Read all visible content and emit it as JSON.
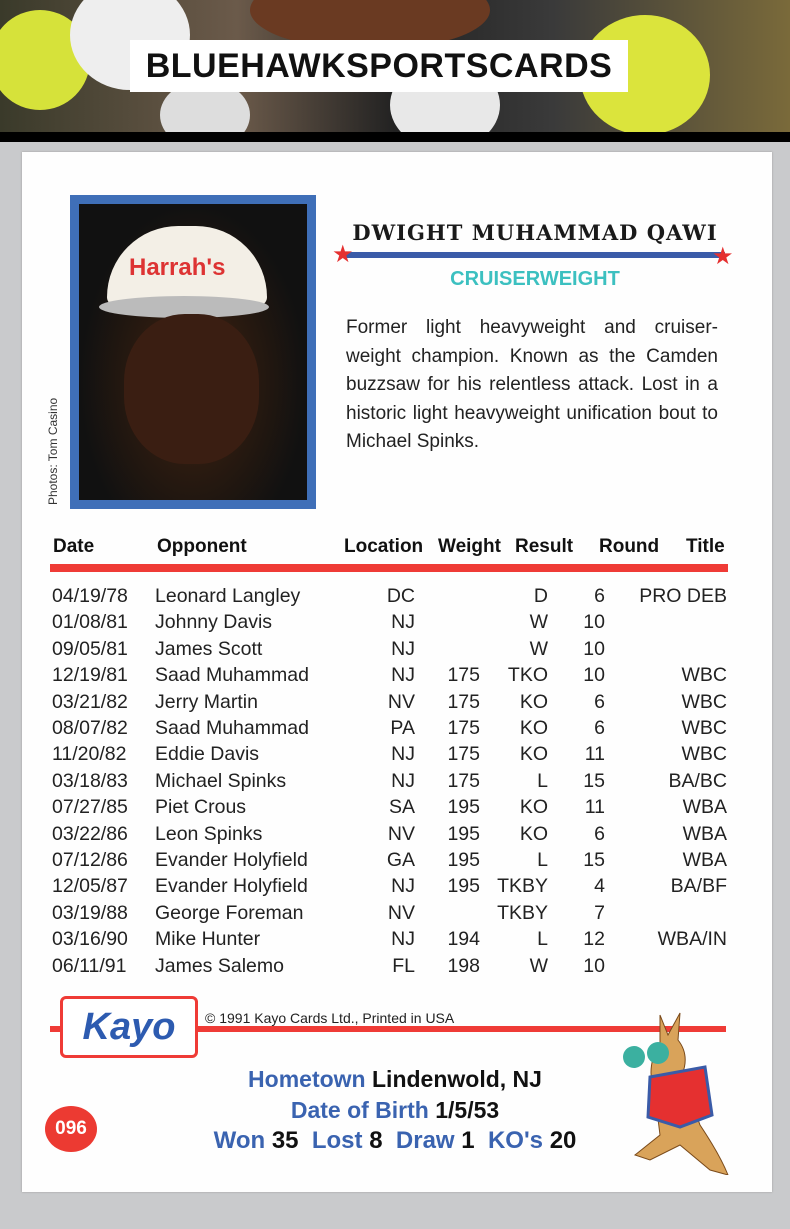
{
  "banner": {
    "brand": "BLUEHAWKSPORTSCARDS"
  },
  "card": {
    "name": "DWIGHT MUHAMMAD QAWI",
    "division": "CRUISERWEIGHT",
    "bio": "Former light heavyweight and cruiser-weight champion. Known as the Camden buzzsaw for his relentless attack. Lost in a historic light heavyweight unification bout to Michael Spinks.",
    "photo_credit": "Photos: Tom Casino",
    "cap_text": "Harrah's",
    "headers": [
      "Date",
      "Opponent",
      "Location",
      "Weight",
      "Result",
      "Round",
      "Title"
    ],
    "rows": [
      [
        "04/19/78",
        "Leonard Langley",
        "DC",
        "",
        "D",
        "6",
        "PRO DEB"
      ],
      [
        "01/08/81",
        "Johnny Davis",
        "NJ",
        "",
        "W",
        "10",
        ""
      ],
      [
        "09/05/81",
        "James Scott",
        "NJ",
        "",
        "W",
        "10",
        ""
      ],
      [
        "12/19/81",
        "Saad Muhammad",
        "NJ",
        "175",
        "TKO",
        "10",
        "WBC"
      ],
      [
        "03/21/82",
        "Jerry Martin",
        "NV",
        "175",
        "KO",
        "6",
        "WBC"
      ],
      [
        "08/07/82",
        "Saad Muhammad",
        "PA",
        "175",
        "KO",
        "6",
        "WBC"
      ],
      [
        "11/20/82",
        "Eddie Davis",
        "NJ",
        "175",
        "KO",
        "11",
        "WBC"
      ],
      [
        "03/18/83",
        "Michael Spinks",
        "NJ",
        "175",
        "L",
        "15",
        "BA/BC"
      ],
      [
        "07/27/85",
        "Piet Crous",
        "SA",
        "195",
        "KO",
        "11",
        "WBA"
      ],
      [
        "03/22/86",
        "Leon Spinks",
        "NV",
        "195",
        "KO",
        "6",
        "WBA"
      ],
      [
        "07/12/86",
        "Evander Holyfield",
        "GA",
        "195",
        "L",
        "15",
        "WBA"
      ],
      [
        "12/05/87",
        "Evander Holyfield",
        "NJ",
        "195",
        "TKBY",
        "4",
        "BA/BF"
      ],
      [
        "03/19/88",
        "George Foreman",
        "NV",
        "",
        "TKBY",
        "7",
        ""
      ],
      [
        "03/16/90",
        "Mike Hunter",
        "NJ",
        "194",
        "L",
        "12",
        "WBA/IN"
      ],
      [
        "06/11/91",
        "James Salemo",
        "FL",
        "198",
        "W",
        "10",
        ""
      ]
    ],
    "logo": "Kayo",
    "copyright": "© 1991 Kayo Cards Ltd., Printed in USA",
    "hometown_label": "Hometown",
    "hometown": "Lindenwold, NJ",
    "dob_label": "Date of Birth",
    "dob": "1/5/53",
    "won_label": "Won",
    "won": "35",
    "lost_label": "Lost",
    "lost": "8",
    "draw_label": "Draw",
    "draw": "1",
    "ko_label": "KO's",
    "ko": "20",
    "card_number": "096"
  },
  "colors": {
    "red": "#ef3b36",
    "blue": "#3a63b0",
    "teal": "#3cc0c0"
  }
}
